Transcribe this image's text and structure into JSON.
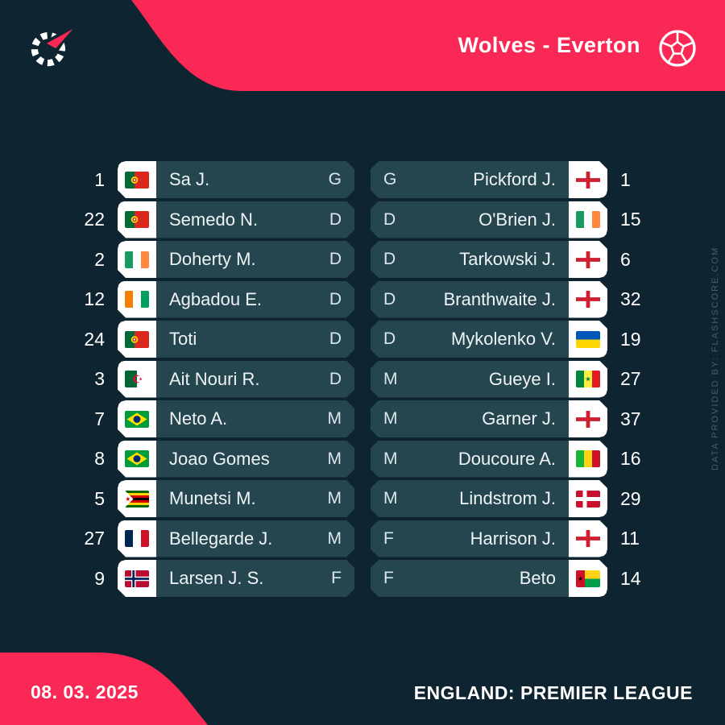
{
  "header": {
    "match_title": "Wolves - Everton"
  },
  "icons": {
    "logo": "flashscore-logo",
    "ball": "football-icon"
  },
  "colors": {
    "accent": "#fa2855",
    "background": "#0e2430",
    "row": "#25454f",
    "flag_box": "#ffffff",
    "muted_text": "#41606d"
  },
  "lineups": {
    "home": {
      "players": [
        {
          "number": "1",
          "flag": "portugal",
          "name": "Sa J.",
          "position": "G"
        },
        {
          "number": "22",
          "flag": "portugal",
          "name": "Semedo N.",
          "position": "D"
        },
        {
          "number": "2",
          "flag": "ireland",
          "name": "Doherty M.",
          "position": "D"
        },
        {
          "number": "12",
          "flag": "ivory-coast",
          "name": "Agbadou E.",
          "position": "D"
        },
        {
          "number": "24",
          "flag": "portugal",
          "name": "Toti",
          "position": "D"
        },
        {
          "number": "3",
          "flag": "algeria",
          "name": "Ait Nouri R.",
          "position": "D"
        },
        {
          "number": "7",
          "flag": "brazil",
          "name": "Neto A.",
          "position": "M"
        },
        {
          "number": "8",
          "flag": "brazil",
          "name": "Joao Gomes",
          "position": "M"
        },
        {
          "number": "5",
          "flag": "zimbabwe",
          "name": "Munetsi M.",
          "position": "M"
        },
        {
          "number": "27",
          "flag": "france",
          "name": "Bellegarde J.",
          "position": "M"
        },
        {
          "number": "9",
          "flag": "norway",
          "name": "Larsen J. S.",
          "position": "F"
        }
      ]
    },
    "away": {
      "players": [
        {
          "number": "1",
          "flag": "england",
          "name": "Pickford J.",
          "position": "G"
        },
        {
          "number": "15",
          "flag": "ireland",
          "name": "O'Brien J.",
          "position": "D"
        },
        {
          "number": "6",
          "flag": "england",
          "name": "Tarkowski J.",
          "position": "D"
        },
        {
          "number": "32",
          "flag": "england",
          "name": "Branthwaite J.",
          "position": "D"
        },
        {
          "number": "19",
          "flag": "ukraine",
          "name": "Mykolenko V.",
          "position": "D"
        },
        {
          "number": "27",
          "flag": "senegal",
          "name": "Gueye I.",
          "position": "M"
        },
        {
          "number": "37",
          "flag": "england",
          "name": "Garner J.",
          "position": "M"
        },
        {
          "number": "16",
          "flag": "mali",
          "name": "Doucoure A.",
          "position": "M"
        },
        {
          "number": "29",
          "flag": "denmark",
          "name": "Lindstrom J.",
          "position": "M"
        },
        {
          "number": "11",
          "flag": "england",
          "name": "Harrison J.",
          "position": "F"
        },
        {
          "number": "14",
          "flag": "guinea-bissau",
          "name": "Beto",
          "position": "F"
        }
      ]
    }
  },
  "footer": {
    "date": "08. 03. 2025",
    "competition": "ENGLAND: PREMIER LEAGUE"
  },
  "watermark": "DATA PROVIDED BY: FLASHSCORE.COM"
}
